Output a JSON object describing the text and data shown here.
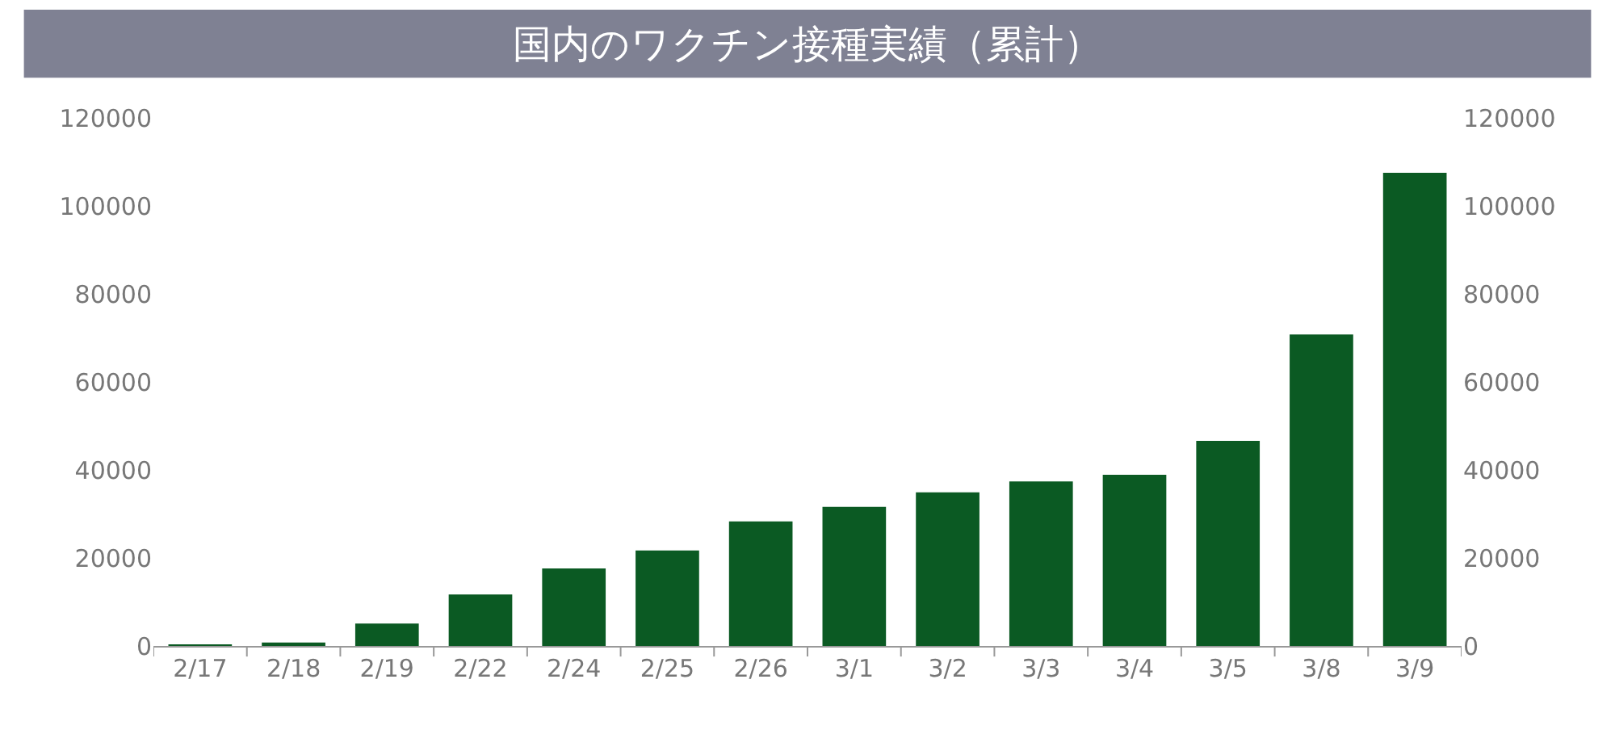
{
  "chart_data": {
    "type": "bar",
    "title": "国内のワクチン接種実績（累計）",
    "categories": [
      "2/17",
      "2/18",
      "2/19",
      "2/22",
      "2/24",
      "2/25",
      "2/26",
      "3/1",
      "3/2",
      "3/3",
      "3/4",
      "3/5",
      "3/8",
      "3/9"
    ],
    "series": [
      {
        "color": "#0b5a23",
        "values": [
          300,
          800,
          5100,
          11700,
          17600,
          21700,
          28300,
          31600,
          34900,
          37400,
          38900,
          46600,
          70800,
          107500
        ]
      }
    ],
    "ylim": [
      0,
      120000
    ],
    "yticks": [
      0,
      20000,
      40000,
      60000,
      80000,
      100000,
      120000
    ],
    "y2lim": [
      0,
      120000
    ],
    "y2ticks": [
      0,
      20000,
      40000,
      60000,
      80000,
      100000,
      120000
    ],
    "grid": false,
    "legend": false
  }
}
